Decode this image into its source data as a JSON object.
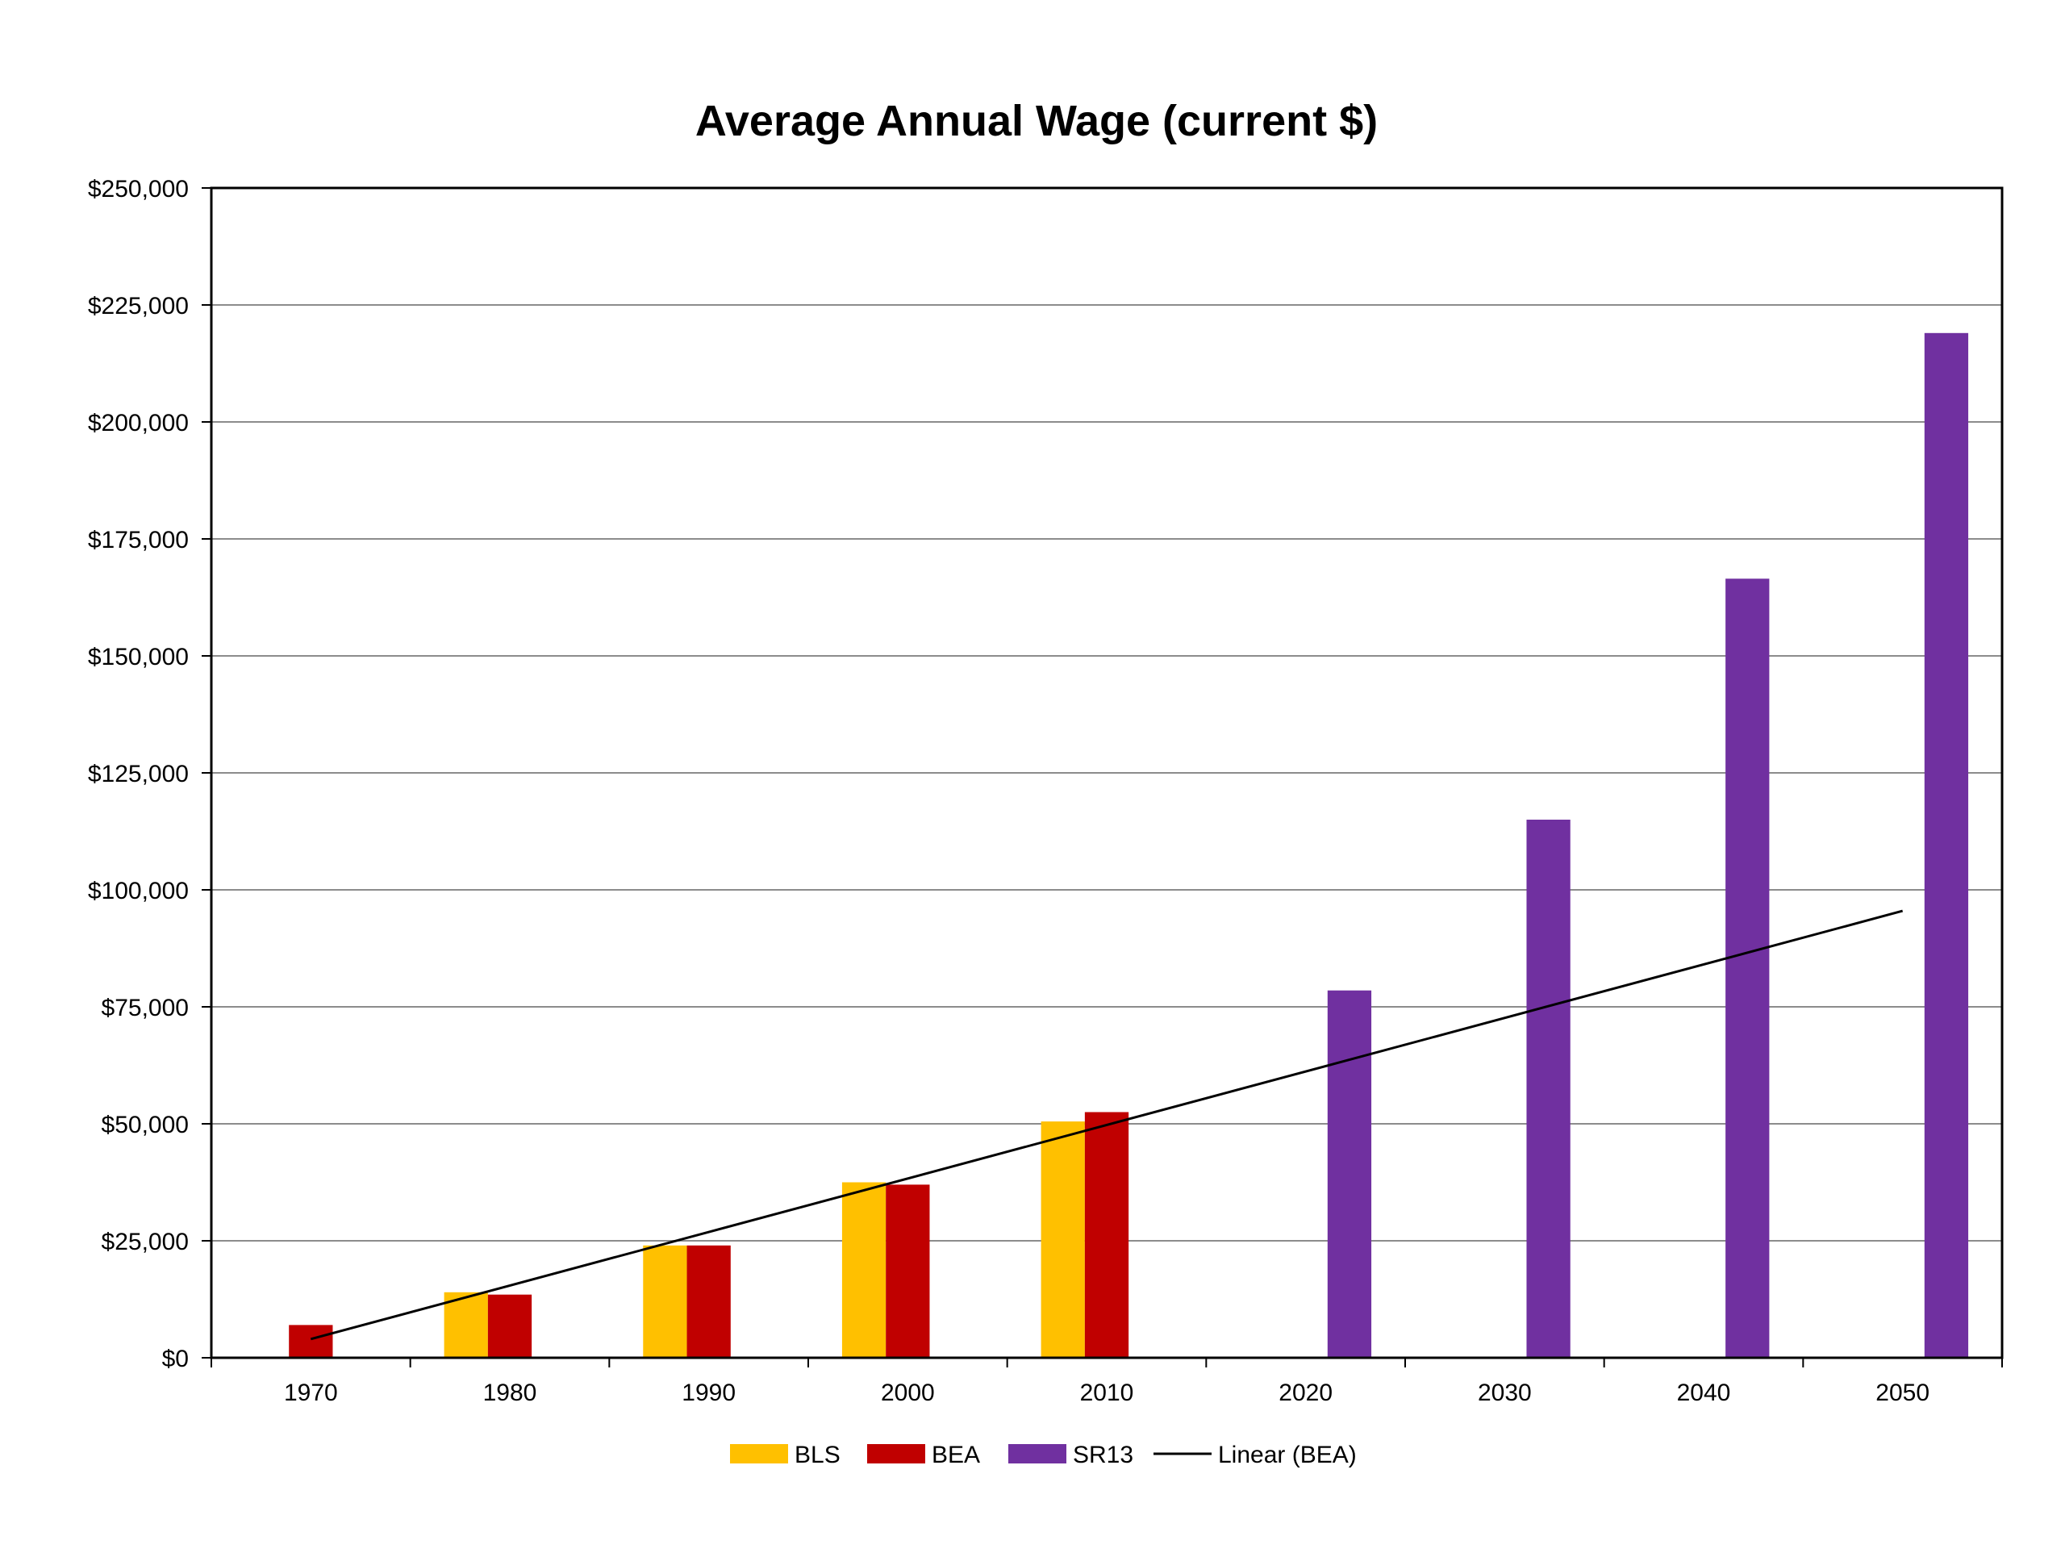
{
  "chart_data": {
    "type": "bar",
    "title": "Average Annual Wage (current $)",
    "xlabel": "",
    "ylabel": "",
    "categories": [
      "1970",
      "1980",
      "1990",
      "2000",
      "2010",
      "2020",
      "2030",
      "2040",
      "2050"
    ],
    "ylim": [
      0,
      250000
    ],
    "yticks": [
      0,
      25000,
      50000,
      75000,
      100000,
      125000,
      150000,
      175000,
      200000,
      225000,
      250000
    ],
    "ytick_labels": [
      "$0",
      "$25,000",
      "$50,000",
      "$75,000",
      "$100,000",
      "$125,000",
      "$150,000",
      "$175,000",
      "$200,000",
      "$225,000",
      "$250,000"
    ],
    "grid": true,
    "legend_position": "bottom",
    "series": [
      {
        "name": "BLS",
        "color": "#FFC000",
        "values": [
          null,
          14000,
          24000,
          37500,
          50500,
          null,
          null,
          null,
          null
        ]
      },
      {
        "name": "BEA",
        "color": "#C00000",
        "values": [
          7000,
          13500,
          24000,
          37000,
          52500,
          null,
          null,
          null,
          null
        ]
      },
      {
        "name": "SR13",
        "color": "#7030A0",
        "values": [
          null,
          null,
          null,
          null,
          null,
          78500,
          115000,
          166500,
          219000
        ]
      }
    ],
    "trendline": {
      "name": "Linear (BEA)",
      "color": "#000000",
      "x_start": "1970",
      "x_end": "2050",
      "y_start": 4000,
      "y_end": 95500
    }
  }
}
